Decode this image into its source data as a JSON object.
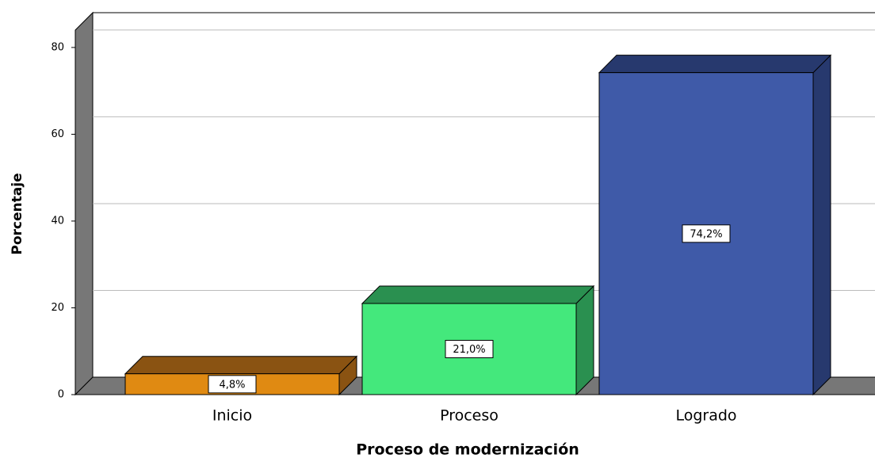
{
  "chart_data": {
    "type": "bar3d",
    "categories": [
      "Inicio",
      "Proceso",
      "Logrado"
    ],
    "values": [
      4.8,
      21.0,
      74.2
    ],
    "value_labels": [
      "4,8%",
      "21,0%",
      "74,2%"
    ],
    "colors": [
      "#e08a12",
      "#44e87c",
      "#3f5aa8"
    ],
    "side_colors": [
      "#8a5312",
      "#2a9050",
      "#27396e"
    ],
    "ylim": [
      0,
      84
    ],
    "yticks": [
      0,
      20,
      40,
      60,
      80
    ],
    "grid": true,
    "xlabel": "Proceso de modernización",
    "ylabel": "Porcentaje"
  }
}
